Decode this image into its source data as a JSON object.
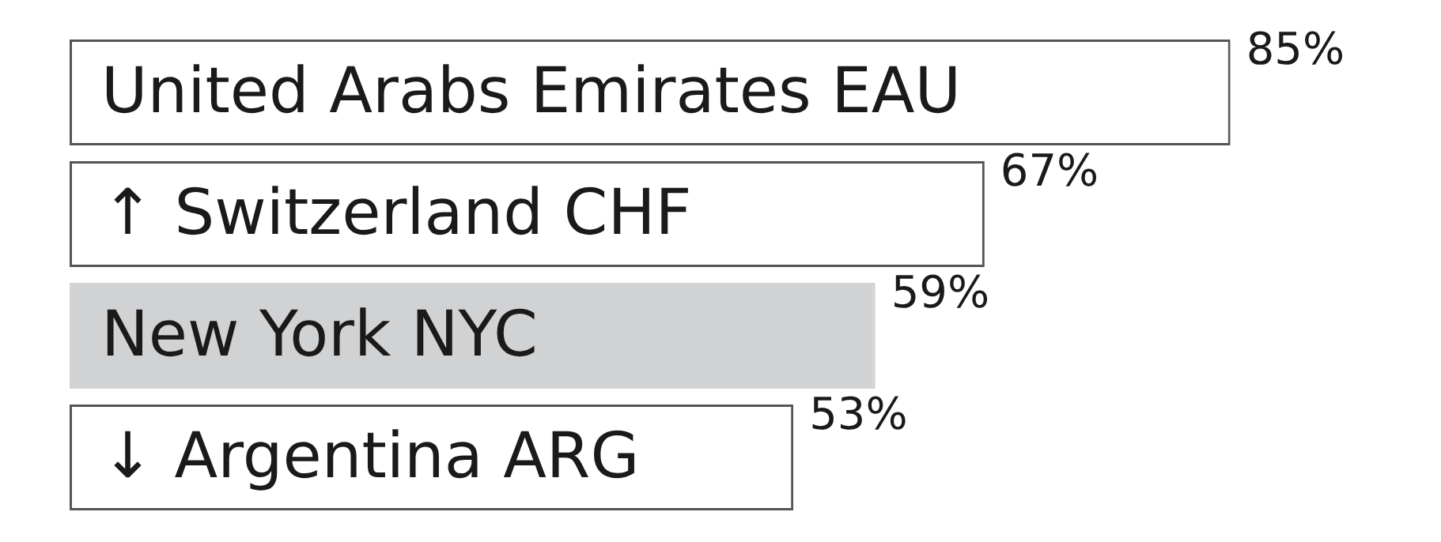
{
  "chart_data": {
    "type": "bar",
    "orientation": "horizontal",
    "categories": [
      "United Arabs Emirates EAU",
      "↑ Switzerland CHF",
      "New York NYC",
      "↓ Argentina ARG"
    ],
    "values": [
      85,
      67,
      59,
      53
    ],
    "colors": [
      "#ffffff",
      "#ffffff",
      "#d1d2d4",
      "#ffffff"
    ],
    "tick_labels": "y",
    "legend": false,
    "data_labels": true,
    "value_labels": [
      "85%",
      "67%",
      "59%",
      "53%"
    ]
  }
}
